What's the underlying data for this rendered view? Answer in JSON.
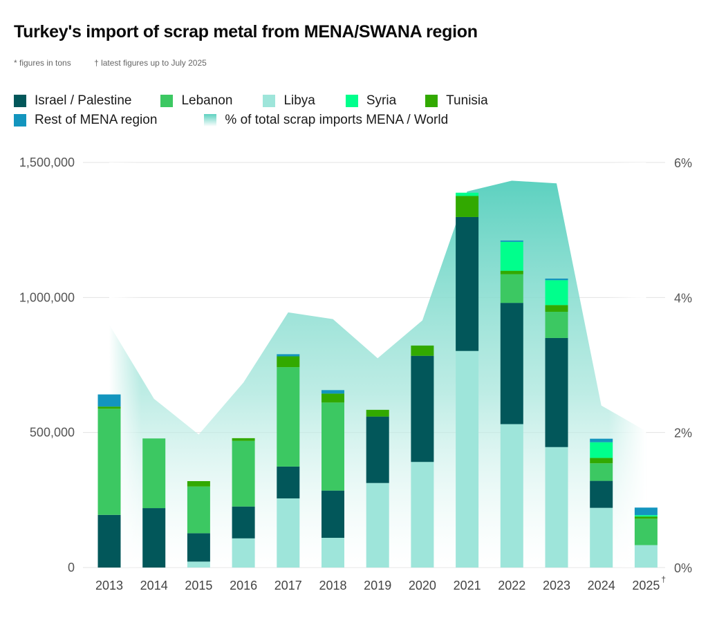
{
  "title": "Turkey's import of scrap metal from MENA/SWANA region",
  "notes": [
    "* figures in tons",
    "† latest figures up to July 2025"
  ],
  "legend": {
    "row1": [
      {
        "label": "Israel / Palestine",
        "color": "#02575a"
      },
      {
        "label": "Lebanon",
        "color": "#3cc862"
      },
      {
        "label": "Libya",
        "color": "#9ee5da"
      },
      {
        "label": "Syria",
        "color": "#00ff8c"
      },
      {
        "label": "Tunisia",
        "color": "#32a900"
      }
    ],
    "row2": [
      {
        "label": "Rest of MENA region",
        "color": "#1395be"
      },
      {
        "label": "% of total scrap imports MENA / World",
        "color": "#5dd1c0"
      }
    ]
  },
  "chart_data": {
    "type": "bar",
    "stacked": true,
    "title": "Turkey's import of scrap metal from MENA/SWANA region",
    "xlabel": "",
    "ylabel": "tons",
    "categories": [
      "2013",
      "2014",
      "2015",
      "2016",
      "2017",
      "2018",
      "2019",
      "2020",
      "2021",
      "2022",
      "2023",
      "2024",
      "2025"
    ],
    "category_suffix": {
      "2025": "†"
    },
    "ylim": [
      0,
      1500000
    ],
    "yticks": [
      0,
      500000,
      1000000,
      1500000
    ],
    "ytick_labels": [
      "0",
      "500,000",
      "1,000,000",
      "1,500,000"
    ],
    "y2lim": [
      0,
      6
    ],
    "y2ticks": [
      0,
      2,
      4,
      6
    ],
    "y2tick_labels": [
      "0%",
      "2%",
      "4%",
      "6%"
    ],
    "grid": true,
    "legend_position": "top-left",
    "series": [
      {
        "name": "Libya",
        "color": "#9ee5da",
        "values": [
          0,
          0,
          22000,
          108000,
          256000,
          110000,
          313000,
          391000,
          802000,
          531000,
          446000,
          221000,
          83000
        ]
      },
      {
        "name": "Israel / Palestine",
        "color": "#02575a",
        "values": [
          195000,
          220000,
          105000,
          118000,
          118000,
          175000,
          246000,
          393000,
          496000,
          449000,
          404000,
          100000,
          0
        ]
      },
      {
        "name": "Lebanon",
        "color": "#3cc862",
        "values": [
          393000,
          258000,
          173000,
          243000,
          368000,
          326000,
          0,
          0,
          0,
          106000,
          97000,
          65000,
          98000
        ]
      },
      {
        "name": "Tunisia",
        "color": "#32a900",
        "values": [
          8000,
          0,
          20000,
          10000,
          40000,
          33000,
          25000,
          38000,
          78000,
          13000,
          25000,
          20000,
          8000
        ]
      },
      {
        "name": "Syria",
        "color": "#00ff8c",
        "values": [
          0,
          0,
          0,
          0,
          0,
          0,
          0,
          0,
          12000,
          107000,
          92000,
          58000,
          5000
        ]
      },
      {
        "name": "Rest of MENA region",
        "color": "#1395be",
        "values": [
          45000,
          0,
          0,
          0,
          8000,
          13000,
          0,
          0,
          0,
          5000,
          6000,
          13000,
          28000
        ]
      }
    ],
    "area_series": {
      "name": "% of total scrap imports MENA / World",
      "axis": "right",
      "color": "#5dd1c0",
      "values": [
        3.6,
        2.5,
        1.97,
        2.74,
        3.78,
        3.68,
        3.1,
        3.66,
        5.57,
        5.73,
        5.69,
        2.4,
        2.02
      ]
    }
  }
}
